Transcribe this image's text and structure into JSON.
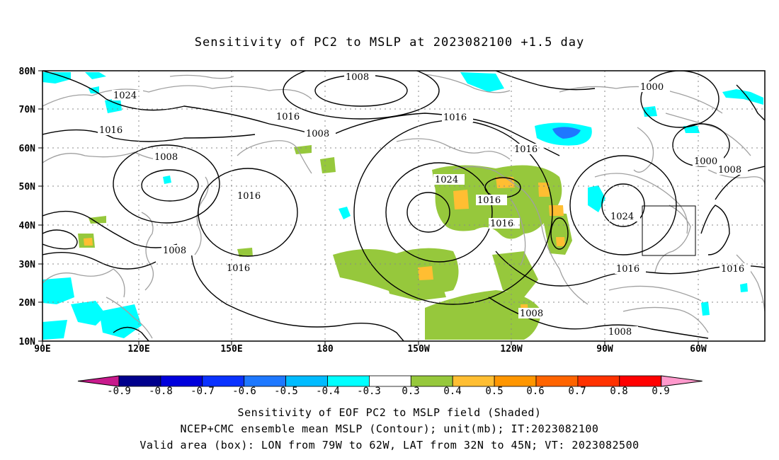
{
  "title": "Sensitivity of PC2 to MSLP at 2023082100 +1.5 day",
  "map": {
    "lon_labels": [
      "90E",
      "120E",
      "150E",
      "180",
      "150W",
      "120W",
      "90W",
      "60W"
    ],
    "lat_labels": [
      "80N",
      "70N",
      "60N",
      "50N",
      "40N",
      "30N",
      "20N",
      "10N"
    ],
    "valid_box": {
      "lon_from": "79W",
      "lon_to": "62W",
      "lat_from": "32N",
      "lat_to": "45N"
    },
    "contour_labels": [
      "1008",
      "1024",
      "1016",
      "1016",
      "1008",
      "1016",
      "1008",
      "1016",
      "1008",
      "1016",
      "1024",
      "1016",
      "1016",
      "1016",
      "1000",
      "1000",
      "1008",
      "1024",
      "1016",
      "1016",
      "1008",
      "1008"
    ]
  },
  "colorbar": {
    "labels": [
      "-0.9",
      "-0.8",
      "-0.7",
      "-0.6",
      "-0.5",
      "-0.4",
      "-0.3",
      "0.3",
      "0.4",
      "0.5",
      "0.6",
      "0.7",
      "0.8",
      "0.9"
    ],
    "colors": [
      "#c81a8c",
      "#00008c",
      "#0000dc",
      "#0a32ff",
      "#1e78ff",
      "#00bbff",
      "#00ffff",
      "#ffffff",
      "#96c83c",
      "#ffbe32",
      "#ff9600",
      "#ff6400",
      "#ff3200",
      "#ff0000",
      "#ff99cc"
    ]
  },
  "captions": [
    "Sensitivity of EOF PC2 to MSLP field (Shaded)",
    "NCEP+CMC ensemble mean MSLP (Contour); unit(mb); IT:2023082100",
    "Valid area (box): LON from 79W to 62W, LAT from 32N to 45N; VT: 2023082500"
  ],
  "colors": {
    "land_outline": "#a0a0a0",
    "contour": "#000000",
    "grid": "#888888",
    "positive_shade": "#96c83c",
    "negative_shade": "#00ffff"
  }
}
